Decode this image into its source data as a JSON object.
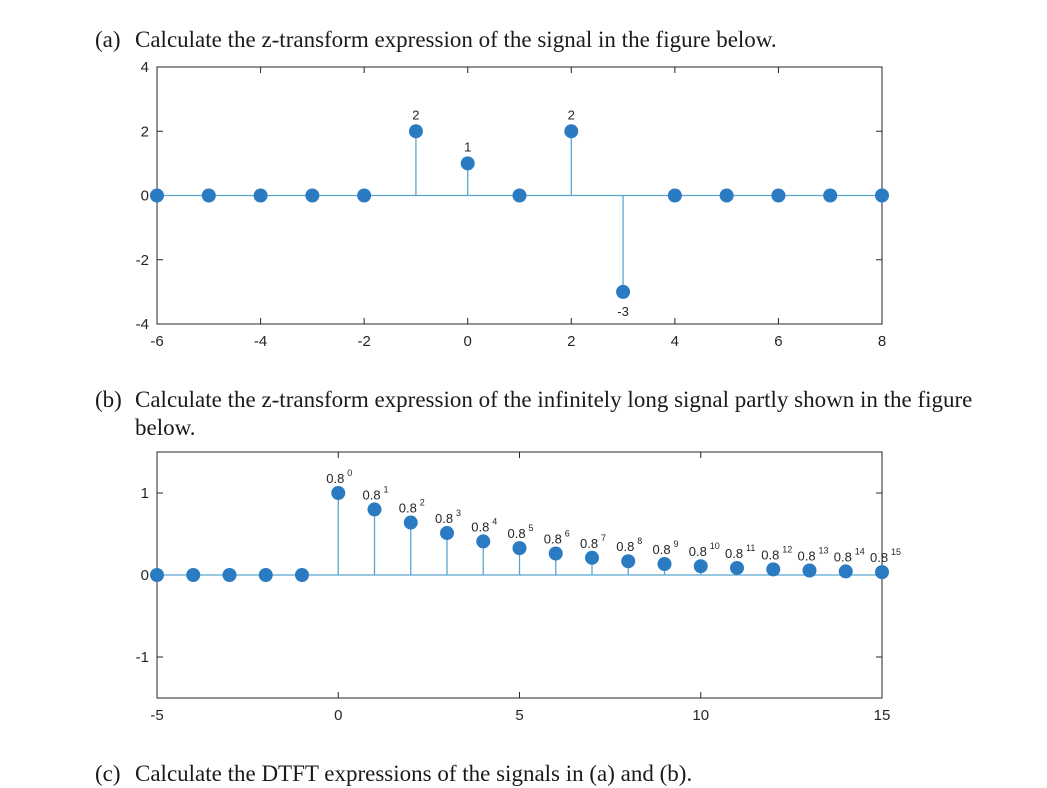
{
  "questions": {
    "a": {
      "label": "(a)",
      "text": "Calculate the z-transform expression of the signal in the figure below."
    },
    "b": {
      "label": "(b)",
      "text": "Calculate the z-transform expression of the infinitely long signal partly shown in the figure below."
    },
    "c": {
      "label": "(c)",
      "text": "Calculate the DTFT expressions of the signals in (a) and (b)."
    }
  },
  "colors": {
    "marker": "#2a7bc2",
    "stem": "#5aa6cf",
    "axis": "#262626"
  },
  "chart_data": [
    {
      "type": "scatter",
      "style": "stem",
      "title": "",
      "xlabel": "",
      "ylabel": "",
      "xlim": [
        -6,
        8
      ],
      "ylim": [
        -4,
        4
      ],
      "xticks": [
        -6,
        -4,
        -2,
        0,
        2,
        4,
        6,
        8
      ],
      "yticks": [
        -4,
        -2,
        0,
        2,
        4
      ],
      "grid": false,
      "x": [
        -6,
        -5,
        -4,
        -3,
        -2,
        -1,
        0,
        1,
        2,
        3,
        4,
        5,
        6,
        7,
        8
      ],
      "y": [
        0,
        0,
        0,
        0,
        0,
        2,
        1,
        0,
        2,
        -3,
        0,
        0,
        0,
        0,
        0
      ],
      "annotations": [
        {
          "x": -1,
          "y": 2,
          "text": "2"
        },
        {
          "x": 0,
          "y": 1,
          "text": "1"
        },
        {
          "x": 2,
          "y": 2,
          "text": "2"
        },
        {
          "x": 3,
          "y": -3,
          "text": "-3"
        }
      ]
    },
    {
      "type": "scatter",
      "style": "stem",
      "title": "",
      "xlabel": "",
      "ylabel": "",
      "xlim": [
        -5,
        15
      ],
      "ylim": [
        -1.5,
        1.5
      ],
      "xticks": [
        -5,
        0,
        5,
        10,
        15
      ],
      "yticks": [
        -1,
        0,
        1
      ],
      "grid": false,
      "x": [
        -5,
        -4,
        -3,
        -2,
        -1,
        0,
        1,
        2,
        3,
        4,
        5,
        6,
        7,
        8,
        9,
        10,
        11,
        12,
        13,
        14,
        15
      ],
      "y": [
        0,
        0,
        0,
        0,
        0,
        1,
        0.8,
        0.64,
        0.512,
        0.4096,
        0.32768,
        0.262144,
        0.2097152,
        0.16777216,
        0.134217728,
        0.107374182,
        0.085899346,
        0.068719477,
        0.054975581,
        0.043980465,
        0.035184372
      ],
      "annotations": [
        {
          "x": 0,
          "base": "0.8",
          "exp": "0"
        },
        {
          "x": 1,
          "base": "0.8",
          "exp": "1"
        },
        {
          "x": 2,
          "base": "0.8",
          "exp": "2"
        },
        {
          "x": 3,
          "base": "0.8",
          "exp": "3"
        },
        {
          "x": 4,
          "base": "0.8",
          "exp": "4"
        },
        {
          "x": 5,
          "base": "0.8",
          "exp": "5"
        },
        {
          "x": 6,
          "base": "0.8",
          "exp": "6"
        },
        {
          "x": 7,
          "base": "0.8",
          "exp": "7"
        },
        {
          "x": 8,
          "base": "0.8",
          "exp": "8"
        },
        {
          "x": 9,
          "base": "0.8",
          "exp": "9"
        },
        {
          "x": 10,
          "base": "0.8",
          "exp": "10"
        },
        {
          "x": 11,
          "base": "0.8",
          "exp": "11"
        },
        {
          "x": 12,
          "base": "0.8",
          "exp": "12"
        },
        {
          "x": 13,
          "base": "0.8",
          "exp": "13"
        },
        {
          "x": 14,
          "base": "0.8",
          "exp": "14"
        },
        {
          "x": 15,
          "base": "0.8",
          "exp": "15"
        }
      ]
    }
  ]
}
